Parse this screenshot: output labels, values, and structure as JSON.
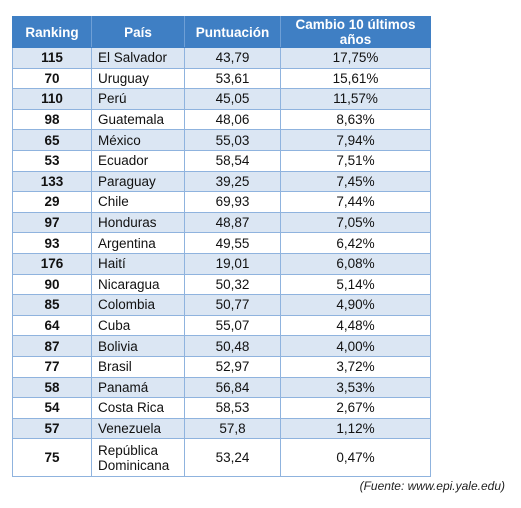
{
  "table": {
    "headers": {
      "ranking": "Ranking",
      "pais": "País",
      "puntuacion": "Puntuación",
      "cambio": "Cambio 10 últimos años"
    },
    "rows": [
      {
        "ranking": "115",
        "pais": "El Salvador",
        "puntuacion": "43,79",
        "cambio": "17,75%"
      },
      {
        "ranking": "70",
        "pais": "Uruguay",
        "puntuacion": "53,61",
        "cambio": "15,61%"
      },
      {
        "ranking": "110",
        "pais": "Perú",
        "puntuacion": "45,05",
        "cambio": "11,57%"
      },
      {
        "ranking": "98",
        "pais": "Guatemala",
        "puntuacion": "48,06",
        "cambio": "8,63%"
      },
      {
        "ranking": "65",
        "pais": "México",
        "puntuacion": "55,03",
        "cambio": "7,94%"
      },
      {
        "ranking": "53",
        "pais": "Ecuador",
        "puntuacion": "58,54",
        "cambio": "7,51%"
      },
      {
        "ranking": "133",
        "pais": "Paraguay",
        "puntuacion": "39,25",
        "cambio": "7,45%"
      },
      {
        "ranking": "29",
        "pais": "Chile",
        "puntuacion": "69,93",
        "cambio": "7,44%"
      },
      {
        "ranking": "97",
        "pais": "Honduras",
        "puntuacion": "48,87",
        "cambio": "7,05%"
      },
      {
        "ranking": "93",
        "pais": "Argentina",
        "puntuacion": "49,55",
        "cambio": "6,42%"
      },
      {
        "ranking": "176",
        "pais": "Haití",
        "puntuacion": "19,01",
        "cambio": "6,08%"
      },
      {
        "ranking": "90",
        "pais": "Nicaragua",
        "puntuacion": "50,32",
        "cambio": "5,14%"
      },
      {
        "ranking": "85",
        "pais": "Colombia",
        "puntuacion": "50,77",
        "cambio": "4,90%"
      },
      {
        "ranking": "64",
        "pais": "Cuba",
        "puntuacion": "55,07",
        "cambio": "4,48%"
      },
      {
        "ranking": "87",
        "pais": "Bolivia",
        "puntuacion": "50,48",
        "cambio": "4,00%"
      },
      {
        "ranking": "77",
        "pais": "Brasil",
        "puntuacion": "52,97",
        "cambio": "3,72%"
      },
      {
        "ranking": "58",
        "pais": "Panamá",
        "puntuacion": "56,84",
        "cambio": "3,53%"
      },
      {
        "ranking": "54",
        "pais": "Costa Rica",
        "puntuacion": "58,53",
        "cambio": "2,67%"
      },
      {
        "ranking": "57",
        "pais": "Venezuela",
        "puntuacion": "57,8",
        "cambio": "1,12%"
      }
    ],
    "last_row": {
      "ranking": "75",
      "pais_line1": "República",
      "pais_line2": "Dominicana",
      "puntuacion": "53,24",
      "cambio": "0,47%"
    }
  },
  "source_note": "(Fuente: www.epi.yale.edu)",
  "colors": {
    "header_bg": "#3f7fc4",
    "stripe_bg": "#dbe6f3",
    "border": "#8fb3de"
  }
}
